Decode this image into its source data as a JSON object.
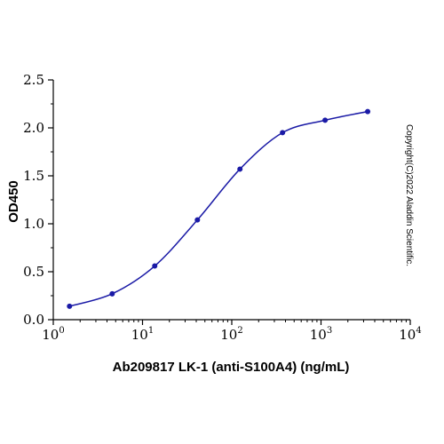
{
  "chart_data": {
    "type": "scatter",
    "xlabel": "Ab209817 LK-1 (anti-S100A4) (ng/mL)",
    "ylabel": "OD450",
    "x_scale": "log10",
    "xlim": [
      1,
      10000
    ],
    "ylim": [
      0,
      2.5
    ],
    "x_ticks": [
      {
        "base": "10",
        "exp": "0"
      },
      {
        "base": "10",
        "exp": "1"
      },
      {
        "base": "10",
        "exp": "2"
      },
      {
        "base": "10",
        "exp": "3"
      },
      {
        "base": "10",
        "exp": "4"
      }
    ],
    "y_ticks": [
      "0.0",
      "0.5",
      "1.0",
      "1.5",
      "2.0",
      "2.5"
    ],
    "grid": false,
    "series": [
      {
        "color": "#1a1aa6",
        "x": [
          1.52,
          4.57,
          13.7,
          41.2,
          123.5,
          370.4,
          1111,
          3333
        ],
        "y": [
          0.14,
          0.27,
          0.56,
          1.04,
          1.57,
          1.95,
          2.08,
          2.17
        ],
        "fit_curve": true
      }
    ]
  },
  "watermark": "Copyright(C)2022 Aladdin Scientific."
}
